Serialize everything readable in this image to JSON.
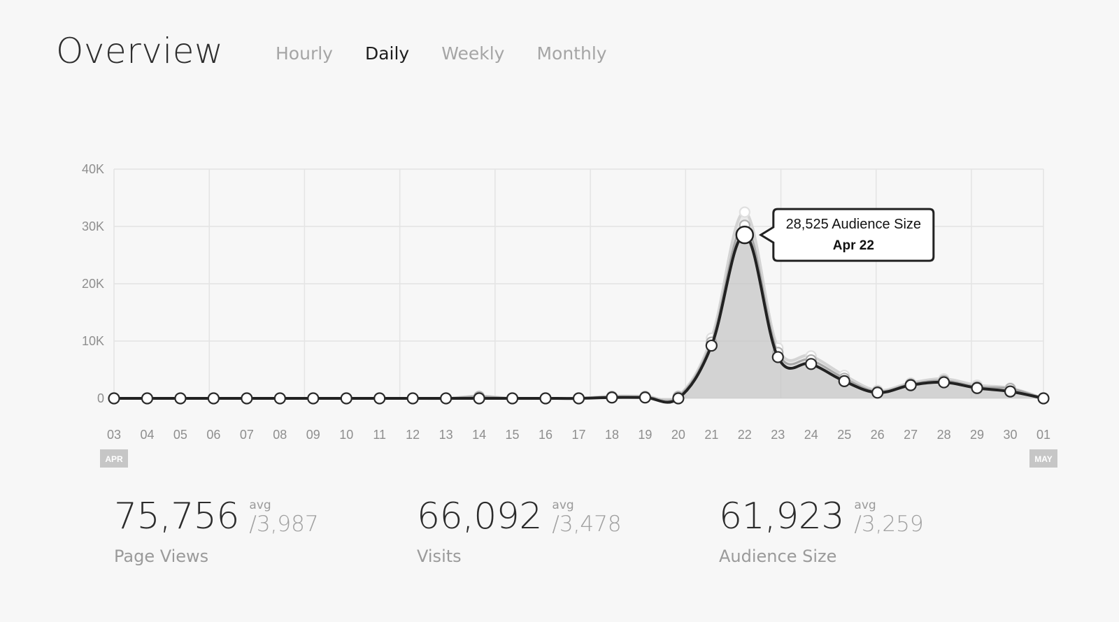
{
  "header": {
    "title": "Overview",
    "tabs": [
      {
        "label": "Hourly",
        "active": false
      },
      {
        "label": "Daily",
        "active": true
      },
      {
        "label": "Weekly",
        "active": false
      },
      {
        "label": "Monthly",
        "active": false
      }
    ]
  },
  "chart_data": {
    "type": "line",
    "categories": [
      "03",
      "04",
      "05",
      "06",
      "07",
      "08",
      "09",
      "10",
      "11",
      "12",
      "13",
      "14",
      "15",
      "16",
      "17",
      "18",
      "19",
      "20",
      "21",
      "22",
      "23",
      "24",
      "25",
      "26",
      "27",
      "28",
      "29",
      "30",
      "01"
    ],
    "month_markers": [
      {
        "label": "APR",
        "at": "03"
      },
      {
        "label": "MAY",
        "at": "01"
      }
    ],
    "y_ticks": [
      "0",
      "10K",
      "20K",
      "30K",
      "40K"
    ],
    "ylim": [
      0,
      40000
    ],
    "grid": true,
    "series": [
      {
        "name": "Page Views",
        "color": "#cfcfcf",
        "values": [
          0,
          0,
          0,
          0,
          0,
          0,
          0,
          0,
          0,
          0,
          0,
          400,
          0,
          0,
          0,
          400,
          400,
          400,
          10500,
          32500,
          8800,
          7400,
          4000,
          1400,
          2700,
          3400,
          2300,
          1800,
          0
        ]
      },
      {
        "name": "Visits",
        "color": "#9a9a9a",
        "values": [
          0,
          0,
          0,
          0,
          0,
          0,
          0,
          0,
          0,
          0,
          0,
          300,
          0,
          0,
          0,
          300,
          300,
          300,
          9800,
          30200,
          8000,
          6700,
          3500,
          1200,
          2500,
          3100,
          2000,
          1700,
          0
        ]
      },
      {
        "name": "Audience Size",
        "color": "#222222",
        "values": [
          0,
          0,
          0,
          0,
          0,
          0,
          0,
          0,
          0,
          0,
          0,
          0,
          0,
          0,
          0,
          150,
          150,
          0,
          9200,
          28525,
          7200,
          6000,
          3000,
          1000,
          2300,
          2800,
          1800,
          1200,
          0
        ]
      }
    ],
    "tooltip": {
      "value_text": "28,525 Audience Size",
      "date_text": "Apr 22",
      "series": "Audience Size",
      "index": 19
    }
  },
  "stats": [
    {
      "value": "75,756",
      "avg_label": "avg",
      "avg_value": "/3,987",
      "label": "Page Views"
    },
    {
      "value": "66,092",
      "avg_label": "avg",
      "avg_value": "/3,478",
      "label": "Visits"
    },
    {
      "value": "61,923",
      "avg_label": "avg",
      "avg_value": "/3,259",
      "label": "Audience Size"
    }
  ]
}
